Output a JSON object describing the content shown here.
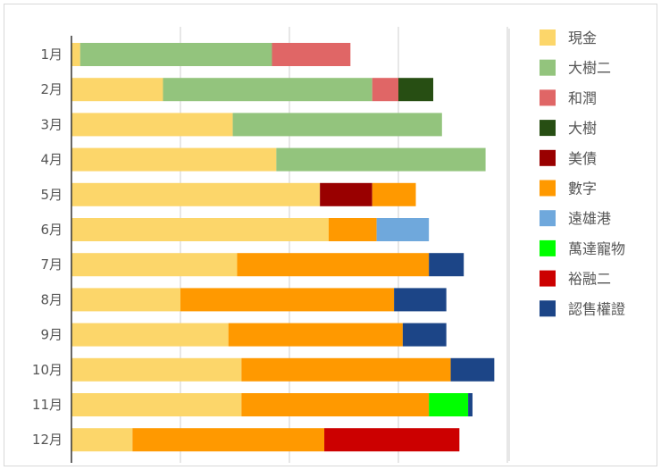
{
  "chart_data": {
    "type": "bar",
    "orientation": "horizontal",
    "stacked": true,
    "title": "",
    "xlabel": "",
    "ylabel": "",
    "xlim": [
      0,
      100
    ],
    "grid": true,
    "legend_position": "right",
    "categories": [
      "1月",
      "2月",
      "3月",
      "4月",
      "5月",
      "6月",
      "7月",
      "8月",
      "9月",
      "10月",
      "11月",
      "12月"
    ],
    "series": [
      {
        "name": "現金",
        "color": "#fcd66a",
        "values": [
          2,
          21,
          37,
          47,
          57,
          59,
          38,
          25,
          36,
          39,
          39,
          14
        ]
      },
      {
        "name": "大樹二",
        "color": "#93c47d",
        "values": [
          44,
          48,
          48,
          48,
          0,
          0,
          0,
          0,
          0,
          0,
          0,
          0
        ]
      },
      {
        "name": "和潤",
        "color": "#e06666",
        "values": [
          18,
          6,
          0,
          0,
          0,
          0,
          0,
          0,
          0,
          0,
          0,
          0
        ]
      },
      {
        "name": "大樹",
        "color": "#274e13",
        "values": [
          0,
          8,
          0,
          0,
          0,
          0,
          0,
          0,
          0,
          0,
          0,
          0
        ]
      },
      {
        "name": "美債",
        "color": "#990000",
        "values": [
          0,
          0,
          0,
          0,
          12,
          0,
          0,
          0,
          0,
          0,
          0,
          0
        ]
      },
      {
        "name": "數字",
        "color": "#ff9900",
        "values": [
          0,
          0,
          0,
          0,
          10,
          11,
          44,
          49,
          40,
          48,
          43,
          44
        ]
      },
      {
        "name": "遠雄港",
        "color": "#6fa8dc",
        "values": [
          0,
          0,
          0,
          0,
          0,
          12,
          0,
          0,
          0,
          0,
          0,
          0
        ]
      },
      {
        "name": "萬達寵物",
        "color": "#00ff00",
        "values": [
          0,
          0,
          0,
          0,
          0,
          0,
          0,
          0,
          0,
          0,
          9,
          0
        ]
      },
      {
        "name": "裕融二",
        "color": "#cc0000",
        "values": [
          0,
          0,
          0,
          0,
          0,
          0,
          0,
          0,
          0,
          0,
          0,
          31
        ]
      },
      {
        "name": "認售權證",
        "color": "#1c4587",
        "values": [
          0,
          0,
          0,
          0,
          0,
          0,
          8,
          12,
          10,
          10,
          1,
          0
        ]
      }
    ]
  }
}
